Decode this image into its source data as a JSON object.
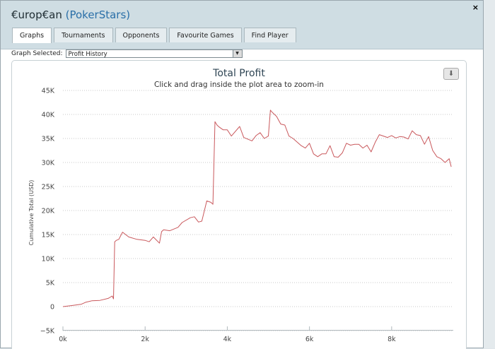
{
  "window": {
    "title_player": "€urop€an",
    "title_site": "(PokerStars)",
    "close_glyph": "×"
  },
  "tabs": [
    {
      "label": "Graphs",
      "active": true
    },
    {
      "label": "Tournaments",
      "active": false
    },
    {
      "label": "Opponents",
      "active": false
    },
    {
      "label": "Favourite Games",
      "active": false
    },
    {
      "label": "Find Player",
      "active": false
    }
  ],
  "graph_selector": {
    "label": "Graph Selected:",
    "value": "Profit History"
  },
  "export_icon": "download-icon",
  "chart_data": {
    "type": "line",
    "title": "Total Profit",
    "subtitle": "Click and drag inside the plot area to zoom-in",
    "ylabel": "Cumulative Total (USD)",
    "xlabel": "",
    "xlim": [
      0,
      9500
    ],
    "ylim": [
      -5000,
      45000
    ],
    "x_ticks": [
      0,
      2000,
      4000,
      6000,
      8000
    ],
    "x_tick_labels": [
      "0k",
      "2k",
      "4k",
      "6k",
      "8k"
    ],
    "y_ticks": [
      -5000,
      0,
      5000,
      10000,
      15000,
      20000,
      25000,
      30000,
      35000,
      40000,
      45000
    ],
    "y_tick_labels": [
      "−5K",
      "0",
      "5K",
      "10K",
      "15K",
      "20K",
      "25K",
      "30K",
      "35K",
      "40K",
      "45K"
    ],
    "grid": true,
    "line_color": "#c9585c",
    "series": [
      {
        "x": [
          0,
          200,
          450,
          550,
          700,
          900,
          1100,
          1200,
          1230,
          1260,
          1300,
          1360,
          1450,
          1600,
          1800,
          2000,
          2100,
          2200,
          2350,
          2400,
          2450,
          2600,
          2800,
          2900,
          3100,
          3200,
          3300,
          3380,
          3500,
          3600,
          3650,
          3700,
          3750,
          3800,
          3900,
          4000,
          4100,
          4300,
          4400,
          4600,
          4700,
          4800,
          4900,
          5000,
          5050,
          5100,
          5150,
          5200,
          5300,
          5400,
          5500,
          5600,
          5800,
          5900,
          6000,
          6100,
          6200,
          6300,
          6400,
          6500,
          6600,
          6700,
          6800,
          6900,
          7000,
          7100,
          7200,
          7300,
          7400,
          7500,
          7600,
          7700,
          7800,
          7900,
          8000,
          8100,
          8200,
          8300,
          8400,
          8500,
          8600,
          8700,
          8800,
          8900,
          9000,
          9100,
          9200,
          9300,
          9400,
          9450
        ],
        "y": [
          0,
          200,
          500,
          900,
          1200,
          1300,
          1700,
          2200,
          1600,
          13500,
          13800,
          14000,
          15500,
          14500,
          14000,
          13800,
          13500,
          14500,
          13200,
          15600,
          16000,
          15800,
          16500,
          17500,
          18500,
          18700,
          17600,
          17800,
          22000,
          21700,
          21300,
          38500,
          37800,
          37400,
          36800,
          36800,
          35500,
          37500,
          35200,
          34500,
          35600,
          36200,
          35000,
          35500,
          40900,
          40400,
          40000,
          39600,
          38000,
          37800,
          35500,
          35000,
          33500,
          33000,
          34000,
          31800,
          31200,
          31800,
          31800,
          33500,
          31200,
          31100,
          32000,
          34000,
          33600,
          33800,
          33800,
          33000,
          33600,
          32200,
          34200,
          35800,
          35500,
          35200,
          35600,
          35100,
          35400,
          35300,
          34900,
          36600,
          35800,
          35600,
          33800,
          35400,
          32500,
          31200,
          30800,
          30000,
          30800,
          29100
        ]
      }
    ]
  }
}
